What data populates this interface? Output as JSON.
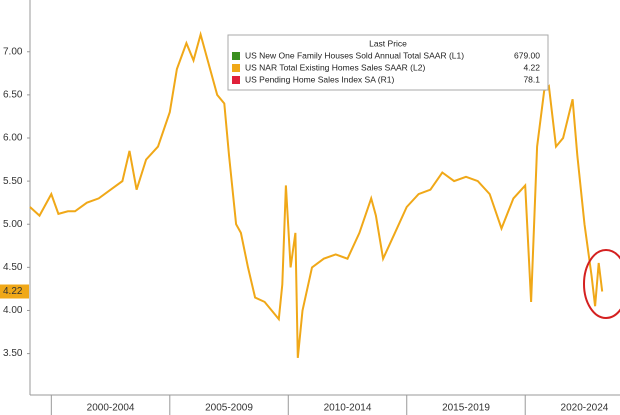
{
  "chart_data": {
    "type": "line",
    "legend_title": "Last Price",
    "series": [
      {
        "name": "US New One Family Houses Sold Annual Total SAAR (L1)",
        "color": "#3a8f1f",
        "last": "679.00"
      },
      {
        "name": "US NAR Total Existing Homes Sales SAAR  (L2)",
        "color": "#f0a818",
        "last": "4.22",
        "x": [
          1999.1,
          1999.5,
          2000.0,
          2000.3,
          2000.7,
          2001.0,
          2001.5,
          2002.0,
          2002.5,
          2003.0,
          2003.3,
          2003.6,
          2004.0,
          2004.5,
          2005.0,
          2005.3,
          2005.7,
          2006.0,
          2006.3,
          2006.6,
          2007.0,
          2007.3,
          2007.5,
          2007.8,
          2008.0,
          2008.3,
          2008.6,
          2009.0,
          2009.3,
          2009.6,
          2009.75,
          2009.9,
          2010.1,
          2010.3,
          2010.4,
          2010.6,
          2011.0,
          2011.5,
          2012.0,
          2012.5,
          2013.0,
          2013.5,
          2013.7,
          2014.0,
          2014.5,
          2015.0,
          2015.5,
          2016.0,
          2016.5,
          2017.0,
          2017.5,
          2018.0,
          2018.5,
          2019.0,
          2019.5,
          2020.0,
          2020.25,
          2020.5,
          2020.8,
          2021.0,
          2021.3,
          2021.6,
          2022.0,
          2022.2,
          2022.5,
          2022.8,
          2022.95,
          2023.1,
          2023.25
        ],
        "values": [
          5.2,
          5.1,
          5.35,
          5.12,
          5.15,
          5.15,
          5.25,
          5.3,
          5.4,
          5.5,
          5.85,
          5.4,
          5.75,
          5.9,
          6.3,
          6.8,
          7.1,
          6.9,
          7.2,
          6.9,
          6.5,
          6.4,
          5.8,
          5.0,
          4.9,
          4.5,
          4.15,
          4.1,
          4.0,
          3.9,
          4.3,
          5.45,
          4.5,
          4.9,
          3.45,
          4.0,
          4.5,
          4.6,
          4.65,
          4.6,
          4.9,
          5.3,
          5.1,
          4.6,
          4.9,
          5.2,
          5.35,
          5.4,
          5.6,
          5.5,
          5.55,
          5.5,
          5.35,
          4.95,
          5.3,
          5.45,
          4.1,
          5.9,
          6.55,
          6.6,
          5.9,
          6.0,
          6.45,
          5.8,
          5.0,
          4.4,
          4.05,
          4.55,
          4.22
        ]
      },
      {
        "name": "US Pending Home Sales Index SA  (R1)",
        "color": "#e0203a",
        "last": "78.1"
      }
    ],
    "current_value": {
      "value": 4.22,
      "label": "4.22"
    },
    "xlim": [
      1999.1,
      2024.0
    ],
    "x_bands": [
      {
        "label": "2000-2004",
        "from": 2000,
        "to": 2005
      },
      {
        "label": "2005-2009",
        "from": 2005,
        "to": 2010
      },
      {
        "label": "2010-2014",
        "from": 2010,
        "to": 2015
      },
      {
        "label": "2015-2019",
        "from": 2015,
        "to": 2020
      },
      {
        "label": "2020-2024",
        "from": 2020,
        "to": 2025
      }
    ],
    "ylim": [
      3.02,
      7.6
    ],
    "yticks": [
      {
        "value": 3.5,
        "label": "3.50"
      },
      {
        "value": 4.0,
        "label": "4.00"
      },
      {
        "value": 4.5,
        "label": "4.50"
      },
      {
        "value": 5.0,
        "label": "5.00"
      },
      {
        "value": 5.5,
        "label": "5.50"
      },
      {
        "value": 6.0,
        "label": "6.00"
      },
      {
        "value": 6.5,
        "label": "6.50"
      },
      {
        "value": 7.0,
        "label": "7.00"
      }
    ]
  }
}
